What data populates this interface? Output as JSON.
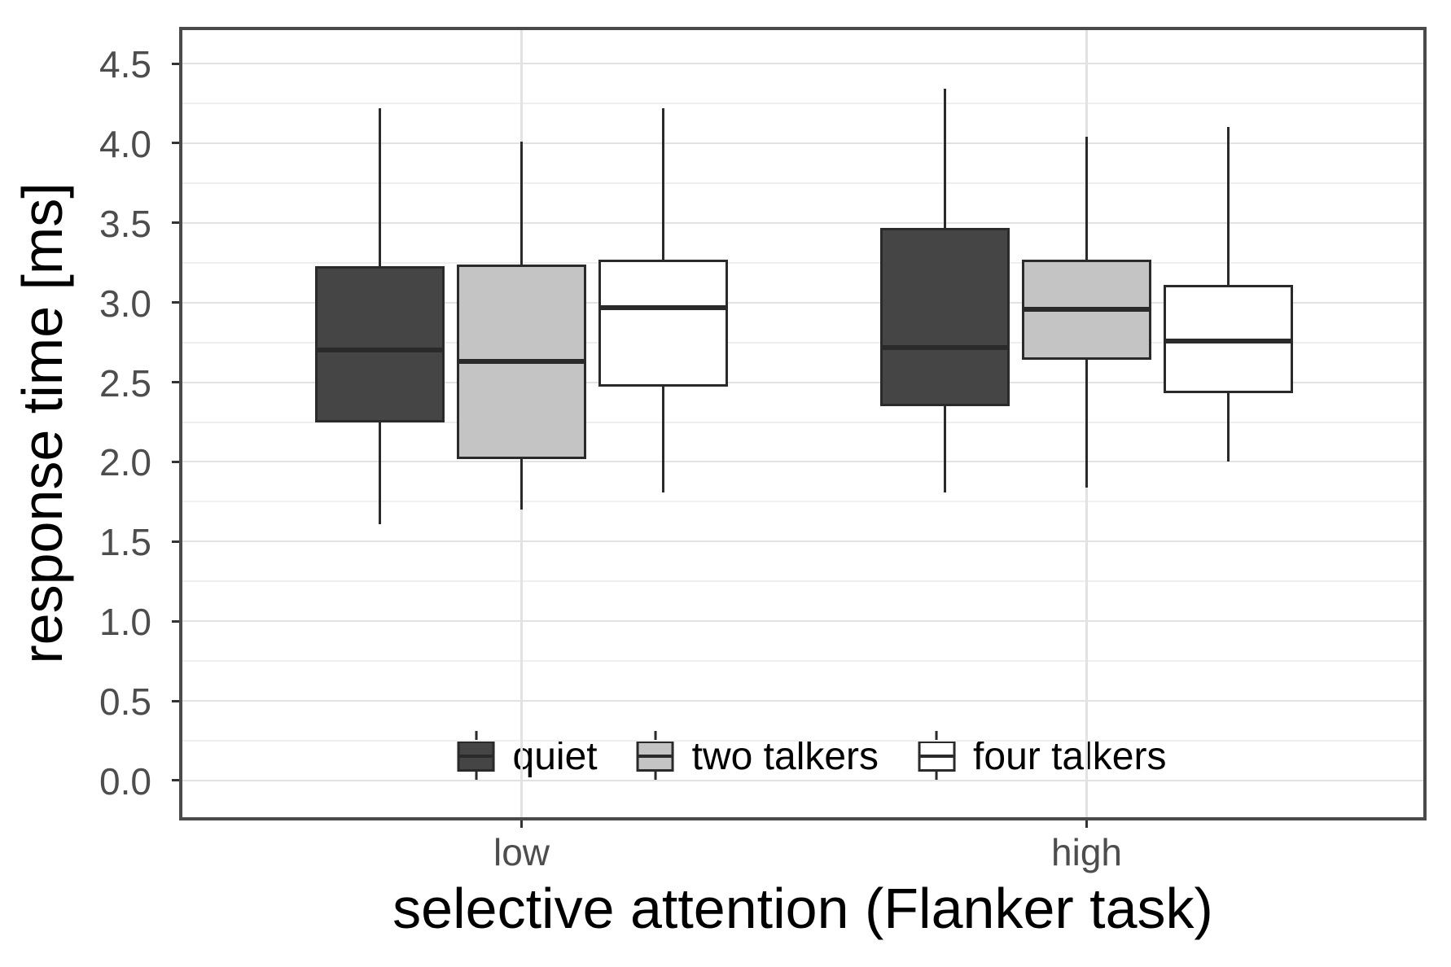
{
  "chart_data": {
    "type": "boxplot",
    "title": "",
    "ylabel": "response time [ms]",
    "xlabel": "selective attention (Flanker task)",
    "categories": [
      "low",
      "high"
    ],
    "ylim": [
      -0.23,
      4.71
    ],
    "y_major_ticks": [
      0.0,
      0.5,
      1.0,
      1.5,
      2.0,
      2.5,
      3.0,
      3.5,
      4.0,
      4.5
    ],
    "y_minor_gridlines": [
      0.25,
      0.75,
      1.25,
      1.75,
      2.25,
      2.75,
      3.25,
      3.75,
      4.25
    ],
    "grid": true,
    "legend_position": "bottom-center-inside",
    "series": [
      {
        "name": "quiet",
        "fill": "#454545",
        "boxes": [
          {
            "category": "low",
            "whisker_low": 1.61,
            "q1": 2.25,
            "median": 2.7,
            "q3": 3.23,
            "whisker_high": 4.22
          },
          {
            "category": "high",
            "whisker_low": 1.81,
            "q1": 2.35,
            "median": 2.72,
            "q3": 3.47,
            "whisker_high": 4.34
          }
        ]
      },
      {
        "name": "two talkers",
        "fill": "#c4c4c4",
        "boxes": [
          {
            "category": "low",
            "whisker_low": 1.7,
            "q1": 2.02,
            "median": 2.63,
            "q3": 3.24,
            "whisker_high": 4.01
          },
          {
            "category": "high",
            "whisker_low": 1.84,
            "q1": 2.64,
            "median": 2.96,
            "q3": 3.27,
            "whisker_high": 4.04
          }
        ]
      },
      {
        "name": "four talkers",
        "fill": "#ffffff",
        "boxes": [
          {
            "category": "low",
            "whisker_low": 1.81,
            "q1": 2.47,
            "median": 2.97,
            "q3": 3.27,
            "whisker_high": 4.22
          },
          {
            "category": "high",
            "whisker_low": 2.0,
            "q1": 2.43,
            "median": 2.76,
            "q3": 3.11,
            "whisker_high": 4.1
          }
        ]
      }
    ],
    "layout": {
      "group_centers_frac": [
        0.2733,
        0.7287
      ],
      "dodge_frac": 0.114,
      "box_width_frac": 0.1042
    }
  },
  "style": {
    "line_color": "#2a2a2a",
    "panel_border_color": "#4a4a4a",
    "grid_major_color": "#e2e2e2",
    "grid_minor_color": "#efefef",
    "tick_color": "#333333",
    "tick_label_color": "#4d4d4d",
    "axis_title_color": "#000000"
  }
}
